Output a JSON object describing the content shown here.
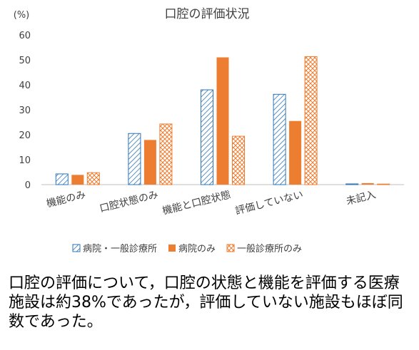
{
  "chart_data": {
    "type": "bar",
    "title": "口腔の評価状況",
    "ylabel": "(%)",
    "xlabel": "",
    "ylim": [
      0,
      60
    ],
    "yticks": [
      0,
      10,
      20,
      30,
      40,
      50,
      60
    ],
    "grid": false,
    "legend_position": "bottom",
    "categories": [
      "機能のみ",
      "口腔状態のみ",
      "機能と口腔状態",
      "評価していない",
      "未記入"
    ],
    "series": [
      {
        "name": "病院・一般診療所",
        "values": [
          4.3,
          20.5,
          38.0,
          36.2,
          0.3
        ],
        "color": "#2e75b6",
        "pattern": "diagonal-lines"
      },
      {
        "name": "病院のみ",
        "values": [
          3.9,
          17.9,
          51.0,
          25.5,
          0.6
        ],
        "color": "#ed7d31",
        "pattern": "solid"
      },
      {
        "name": "一般診療所のみ",
        "values": [
          4.8,
          24.3,
          19.4,
          51.3,
          0.0
        ],
        "color": "#ed7d31",
        "pattern": "crosshatch"
      }
    ]
  },
  "caption": "口腔の評価について，口腔の状態と機能を評価する医療施設は約38%であったが，評価していない施設もほぼ同数であった。"
}
